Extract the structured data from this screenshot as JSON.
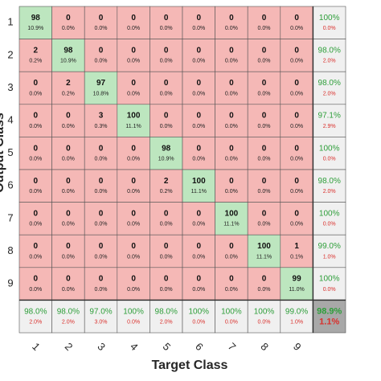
{
  "chart_data": {
    "type": "confusion",
    "xlabel": "Target Class",
    "ylabel": "Output Class",
    "categories": [
      1,
      2,
      3,
      4,
      5,
      6,
      7,
      8,
      9
    ],
    "counts": [
      [
        98,
        0,
        0,
        0,
        0,
        0,
        0,
        0,
        0
      ],
      [
        2,
        98,
        0,
        0,
        0,
        0,
        0,
        0,
        0
      ],
      [
        0,
        2,
        97,
        0,
        0,
        0,
        0,
        0,
        0
      ],
      [
        0,
        0,
        3,
        100,
        0,
        0,
        0,
        0,
        0
      ],
      [
        0,
        0,
        0,
        0,
        98,
        0,
        0,
        0,
        0
      ],
      [
        0,
        0,
        0,
        0,
        2,
        100,
        0,
        0,
        0
      ],
      [
        0,
        0,
        0,
        0,
        0,
        0,
        100,
        0,
        0
      ],
      [
        0,
        0,
        0,
        0,
        0,
        0,
        0,
        100,
        1
      ],
      [
        0,
        0,
        0,
        0,
        0,
        0,
        0,
        0,
        99
      ]
    ],
    "percents": [
      [
        "10.9%",
        "0.0%",
        "0.0%",
        "0.0%",
        "0.0%",
        "0.0%",
        "0.0%",
        "0.0%",
        "0.0%"
      ],
      [
        "0.2%",
        "10.9%",
        "0.0%",
        "0.0%",
        "0.0%",
        "0.0%",
        "0.0%",
        "0.0%",
        "0.0%"
      ],
      [
        "0.0%",
        "0.2%",
        "10.8%",
        "0.0%",
        "0.0%",
        "0.0%",
        "0.0%",
        "0.0%",
        "0.0%"
      ],
      [
        "0.0%",
        "0.0%",
        "0.3%",
        "11.1%",
        "0.0%",
        "0.0%",
        "0.0%",
        "0.0%",
        "0.0%"
      ],
      [
        "0.0%",
        "0.0%",
        "0.0%",
        "0.0%",
        "10.9%",
        "0.0%",
        "0.0%",
        "0.0%",
        "0.0%"
      ],
      [
        "0.0%",
        "0.0%",
        "0.0%",
        "0.0%",
        "0.2%",
        "11.1%",
        "0.0%",
        "0.0%",
        "0.0%"
      ],
      [
        "0.0%",
        "0.0%",
        "0.0%",
        "0.0%",
        "0.0%",
        "0.0%",
        "11.1%",
        "0.0%",
        "0.0%"
      ],
      [
        "0.0%",
        "0.0%",
        "0.0%",
        "0.0%",
        "0.0%",
        "0.0%",
        "0.0%",
        "11.1%",
        "0.1%"
      ],
      [
        "0.0%",
        "0.0%",
        "0.0%",
        "0.0%",
        "0.0%",
        "0.0%",
        "0.0%",
        "0.0%",
        "11.0%"
      ]
    ],
    "row_summary": [
      [
        "100%",
        "0.0%"
      ],
      [
        "98.0%",
        "2.0%"
      ],
      [
        "98.0%",
        "2.0%"
      ],
      [
        "97.1%",
        "2.9%"
      ],
      [
        "100%",
        "0.0%"
      ],
      [
        "98.0%",
        "2.0%"
      ],
      [
        "100%",
        "0.0%"
      ],
      [
        "99.0%",
        "1.0%"
      ],
      [
        "100%",
        "0.0%"
      ]
    ],
    "col_summary": [
      [
        "98.0%",
        "2.0%"
      ],
      [
        "98.0%",
        "2.0%"
      ],
      [
        "97.0%",
        "3.0%"
      ],
      [
        "100%",
        "0.0%"
      ],
      [
        "98.0%",
        "2.0%"
      ],
      [
        "100%",
        "0.0%"
      ],
      [
        "100%",
        "0.0%"
      ],
      [
        "100%",
        "0.0%"
      ],
      [
        "99.0%",
        "1.0%"
      ]
    ],
    "overall": [
      "98.9%",
      "1.1%"
    ],
    "colors": {
      "correct": "#bde6bf",
      "wrong": "#f5b8b6",
      "summary": "#f0f0f0",
      "overall": "#a8a8a8",
      "good_text": "#2e9e3a",
      "bad_text": "#d9302c"
    }
  }
}
